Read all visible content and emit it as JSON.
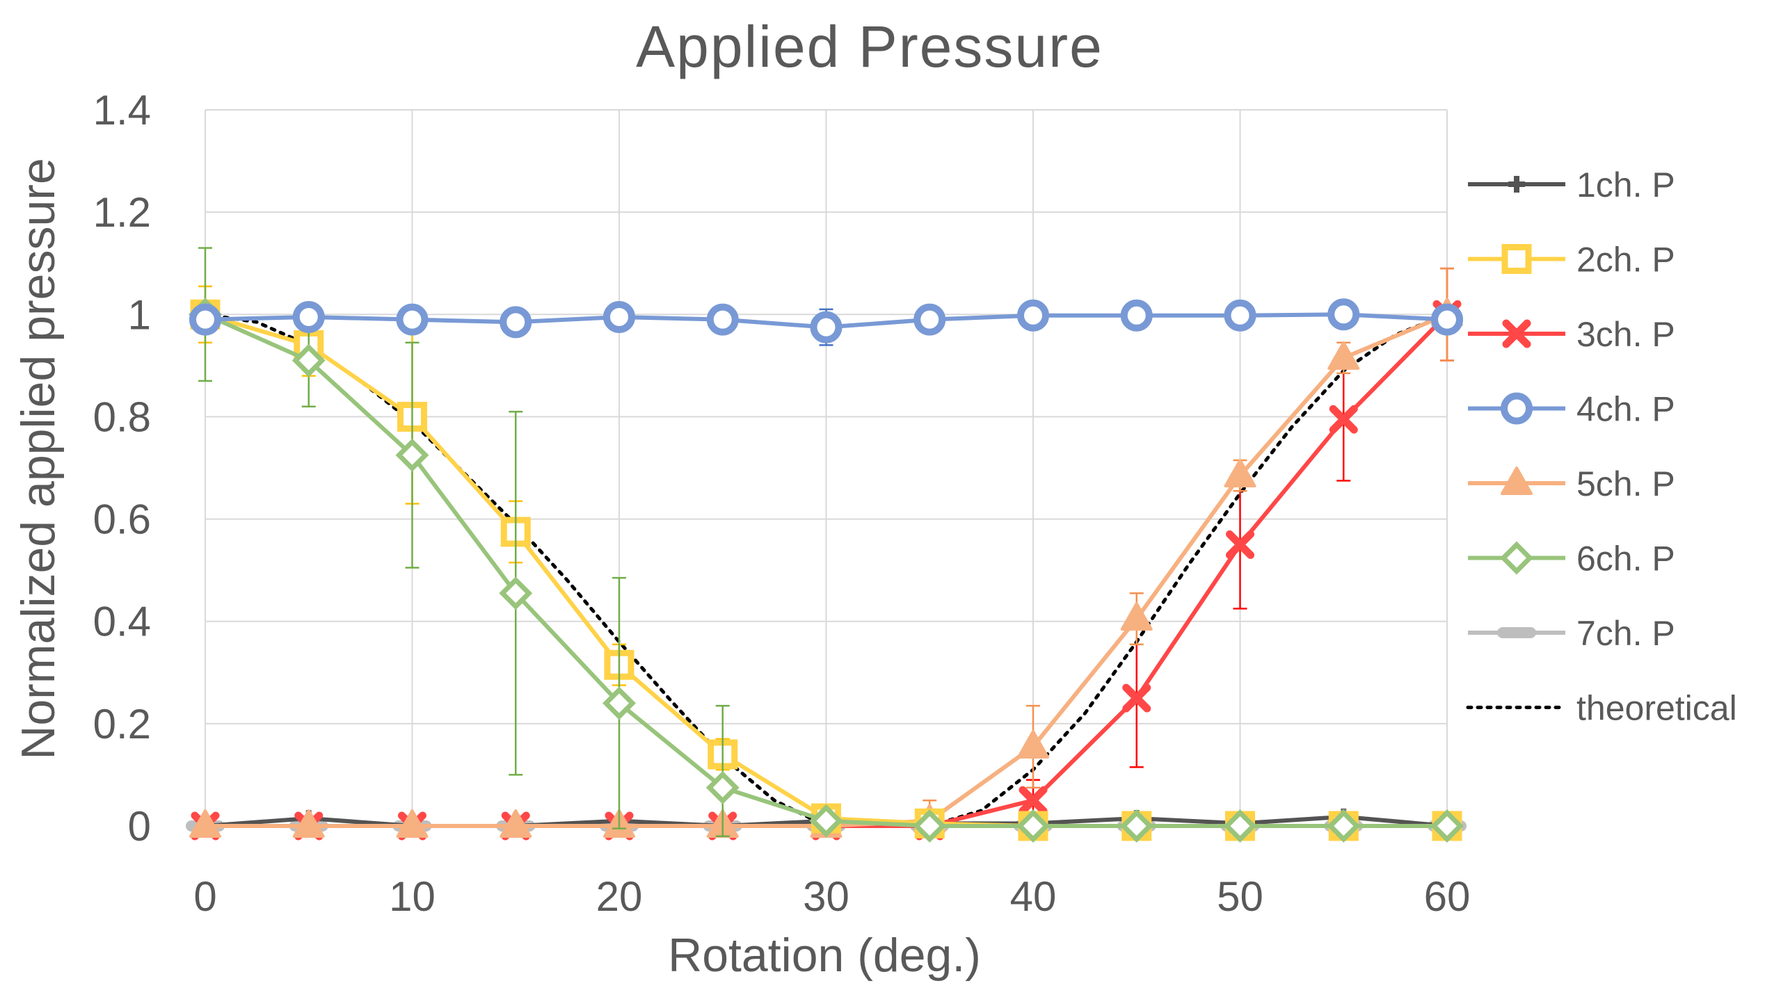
{
  "chart_data": {
    "type": "line",
    "title": "Applied Pressure",
    "xlabel": "Rotation (deg.)",
    "ylabel": "Normalized applied pressure",
    "xlim": [
      0,
      60
    ],
    "ylim": [
      0,
      1.4
    ],
    "x_ticks": [
      "0",
      "10",
      "20",
      "30",
      "40",
      "50",
      "60"
    ],
    "y_ticks": [
      "0",
      "0.2",
      "0.4",
      "0.6",
      "0.8",
      "1",
      "1.2",
      "1.4"
    ],
    "grid": true,
    "legend_position": "right",
    "x": [
      0,
      5,
      10,
      15,
      20,
      25,
      30,
      35,
      40,
      45,
      50,
      55,
      60
    ],
    "series": [
      {
        "name": "1ch. P",
        "color": "#404040",
        "marker": "plus",
        "values": [
          0,
          0.015,
          0,
          0,
          0.01,
          0,
          0.01,
          0.005,
          0.005,
          0.015,
          0.005,
          0.018,
          0
        ],
        "errors": []
      },
      {
        "name": "2ch. P",
        "color": "#ffc000",
        "marker": "square",
        "values": [
          1.0,
          0.94,
          0.8,
          0.575,
          0.315,
          0.14,
          0.015,
          0.005,
          0.0,
          0.0,
          0.0,
          0.0,
          0.0
        ],
        "errors": [
          0.055,
          0.06,
          0.17,
          0.06,
          0.04,
          0.03,
          0.01,
          0.01,
          0.01,
          0.01,
          0.01,
          0.01,
          0.01
        ]
      },
      {
        "name": "3ch. P",
        "color": "#ff0000",
        "marker": "x",
        "values": [
          0,
          0,
          0,
          0,
          0,
          0,
          0,
          0,
          0.05,
          0.25,
          0.55,
          0.795,
          1.0
        ],
        "errors": [
          0.01,
          0.01,
          0.01,
          0.01,
          0.01,
          0.01,
          0.01,
          0.01,
          0.04,
          0.135,
          0.125,
          0.12,
          0.09
        ]
      },
      {
        "name": "4ch. P",
        "color": "#4472c4",
        "marker": "circle",
        "values": [
          0.99,
          0.995,
          0.99,
          0.985,
          0.995,
          0.99,
          0.975,
          0.99,
          0.998,
          0.998,
          0.998,
          1.0,
          0.99
        ],
        "errors": [
          0.01,
          0.01,
          0.01,
          0.01,
          0.01,
          0.01,
          0.035,
          0.01,
          0.01,
          0.01,
          0.01,
          0.01,
          0.01
        ]
      },
      {
        "name": "5ch. P",
        "color": "#f4914f",
        "marker": "triangle",
        "values": [
          0,
          0,
          0,
          0,
          0,
          0,
          0,
          0.01,
          0.155,
          0.405,
          0.685,
          0.915,
          1.0
        ],
        "errors": [
          0.01,
          0.01,
          0.01,
          0.01,
          0.01,
          0.01,
          0.01,
          0.04,
          0.08,
          0.05,
          0.03,
          0.03,
          0.09
        ]
      },
      {
        "name": "6ch. P",
        "color": "#70ad47",
        "marker": "diamond",
        "values": [
          1.0,
          0.91,
          0.725,
          0.455,
          0.24,
          0.075,
          0.01,
          0.0,
          0.0,
          0.0,
          0.0,
          0.0,
          0.0
        ],
        "errors": [
          0.13,
          0.09,
          0.22,
          0.355,
          0.245,
          0.16,
          0.01,
          0.01,
          0.01,
          0.01,
          0.01,
          0.01,
          0.01
        ]
      },
      {
        "name": "7ch. P",
        "color": "#a5a5a5",
        "marker": "dash",
        "values": [
          0,
          0,
          0,
          0,
          0,
          0,
          0,
          0,
          0,
          0,
          0,
          0,
          0
        ],
        "errors": []
      },
      {
        "name": "theoretical",
        "color": "#000000",
        "marker": "none",
        "dotted": true,
        "x": [
          0,
          2.5,
          5,
          7.5,
          10,
          12.5,
          15,
          17.5,
          20,
          22.5,
          25,
          27.5,
          30,
          32.5,
          35,
          37.5,
          40,
          42.5,
          45,
          47.5,
          50,
          52.5,
          55,
          57.5,
          60
        ],
        "values": [
          1.0,
          0.985,
          0.94,
          0.87,
          0.79,
          0.69,
          0.59,
          0.48,
          0.36,
          0.245,
          0.135,
          0.05,
          0.0,
          0.0,
          0.0,
          0.03,
          0.11,
          0.22,
          0.36,
          0.51,
          0.65,
          0.78,
          0.89,
          0.96,
          1.0
        ],
        "errors": []
      }
    ]
  }
}
